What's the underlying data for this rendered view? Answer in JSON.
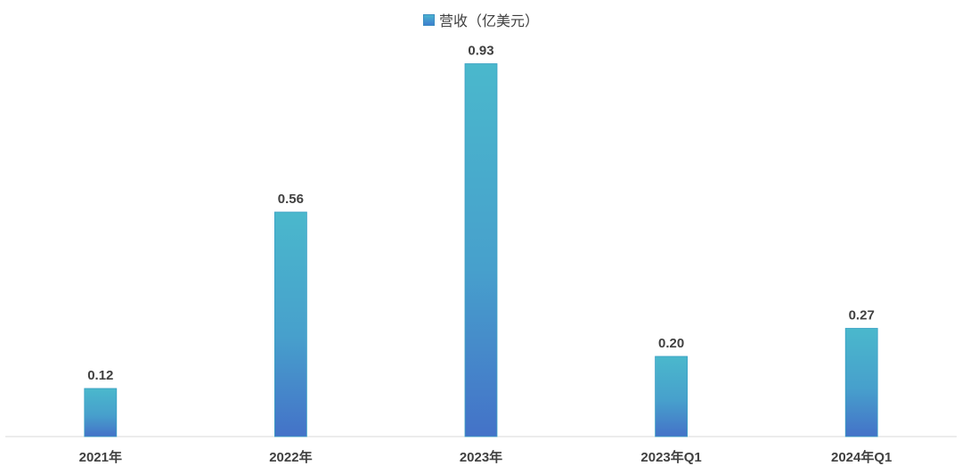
{
  "chart_data": {
    "type": "bar",
    "categories": [
      "2021年",
      "2022年",
      "2023年",
      "2023年Q1",
      "2024年Q1"
    ],
    "series": [
      {
        "name": "营收（亿美元）",
        "values": [
          0.12,
          0.56,
          0.93,
          0.2,
          0.27
        ]
      }
    ],
    "data_labels": [
      "0.12",
      "0.56",
      "0.93",
      "0.20",
      "0.27"
    ],
    "ylim": [
      0,
      1.0
    ],
    "grid": false,
    "legend_position": "top-center",
    "colors": {
      "bar_top": "#4ab8cc",
      "bar_bottom": "#4472c8",
      "axis": "#d9d9d9",
      "text": "#404040"
    }
  }
}
